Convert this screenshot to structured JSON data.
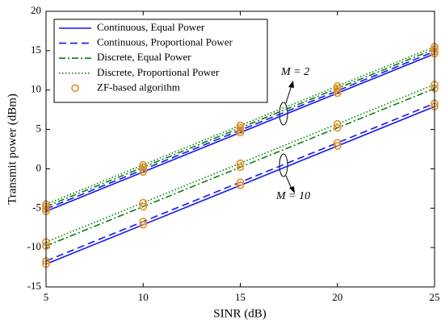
{
  "chart_data": {
    "type": "line",
    "xlabel": "SINR (dB)",
    "ylabel": "Transmit power (dBm)",
    "x": [
      5,
      10,
      15,
      20,
      25
    ],
    "xlim": [
      5,
      25
    ],
    "ylim": [
      -15,
      20
    ],
    "xticks": [
      5,
      10,
      15,
      20,
      25
    ],
    "yticks": [
      -15,
      -10,
      -5,
      0,
      5,
      10,
      15,
      20
    ],
    "annotations": [
      "M = 2",
      "M = 10"
    ],
    "legend": "upper left",
    "series": [
      {
        "name": "Continuous, Equal Power",
        "color": "#1515f5",
        "dash": "solid",
        "values": [
          [
            -5.4,
            -0.4,
            4.6,
            9.6,
            14.6
          ],
          [
            -12.1,
            -7.1,
            -2.1,
            2.9,
            7.9
          ]
        ]
      },
      {
        "name": "Continuous, Proportional Power",
        "color": "#1515f5",
        "dash": "dashed",
        "values": [
          [
            -5.1,
            -0.1,
            4.9,
            9.9,
            14.9
          ],
          [
            -11.7,
            -6.7,
            -1.7,
            3.3,
            8.3
          ]
        ]
      },
      {
        "name": "Discrete, Equal Power",
        "color": "#0a800a",
        "dash": "dashdot",
        "values": [
          [
            -4.8,
            0.2,
            5.2,
            10.2,
            15.2
          ],
          [
            -9.8,
            -4.8,
            0.2,
            5.2,
            10.2
          ]
        ]
      },
      {
        "name": "Discrete, Proportional Power",
        "color": "#0a800a",
        "dash": "dotted",
        "values": [
          [
            -4.5,
            0.5,
            5.5,
            10.5,
            15.5
          ],
          [
            -9.3,
            -4.3,
            0.7,
            5.7,
            10.7
          ]
        ]
      },
      {
        "name": "ZF-based algorithm",
        "color": "#e0912a",
        "marker": "circle",
        "x": [
          5,
          5,
          5,
          5,
          5,
          5,
          5,
          5,
          10,
          10,
          10,
          10,
          10,
          10,
          10,
          10,
          15,
          15,
          15,
          15,
          15,
          15,
          15,
          15,
          20,
          20,
          20,
          20,
          20,
          20,
          20,
          20,
          25,
          25,
          25,
          25,
          25,
          25,
          25,
          25
        ],
        "values": [
          -5.4,
          -5.1,
          -4.8,
          -4.5,
          -12.1,
          -11.7,
          -9.8,
          -9.3,
          -0.4,
          -0.1,
          0.2,
          0.5,
          -7.1,
          -6.7,
          -4.8,
          -4.3,
          4.6,
          4.9,
          5.2,
          5.5,
          -2.1,
          -1.7,
          0.2,
          0.7,
          9.6,
          9.9,
          10.2,
          10.5,
          2.9,
          3.3,
          5.2,
          5.7,
          14.6,
          14.9,
          15.2,
          15.5,
          7.9,
          8.3,
          10.2,
          10.7
        ]
      }
    ]
  }
}
